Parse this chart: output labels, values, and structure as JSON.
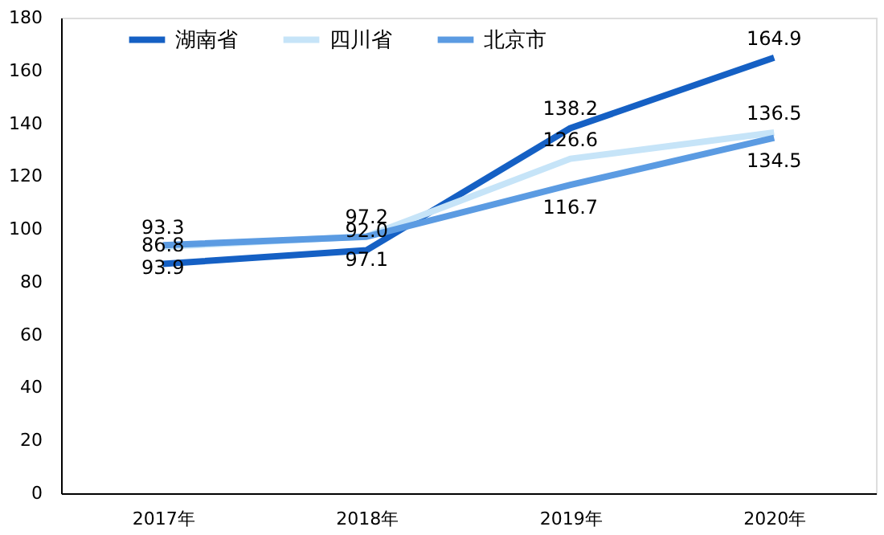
{
  "chart_data": {
    "type": "line",
    "categories": [
      "2017年",
      "2018年",
      "2019年",
      "2020年"
    ],
    "series": [
      {
        "name": "湖南省",
        "color": "#1560c4",
        "values": [
          86.8,
          92.0,
          138.2,
          164.9
        ],
        "value_labels": [
          "86.8",
          "92.0",
          "138.2",
          "164.9"
        ]
      },
      {
        "name": "四川省",
        "color": "#c6e4f8",
        "values": [
          93.3,
          97.2,
          126.6,
          136.5
        ]
      },
      {
        "name": "北京市",
        "color": "#5b9be2",
        "values": [
          93.9,
          97.1,
          116.7,
          134.5
        ]
      }
    ],
    "ylim": [
      0,
      180
    ],
    "yticks": [
      0,
      20,
      40,
      60,
      80,
      100,
      120,
      140,
      160,
      180
    ],
    "grid": false,
    "legend": "top left",
    "data_labels": true,
    "marker": "none",
    "line_style": "solid"
  }
}
